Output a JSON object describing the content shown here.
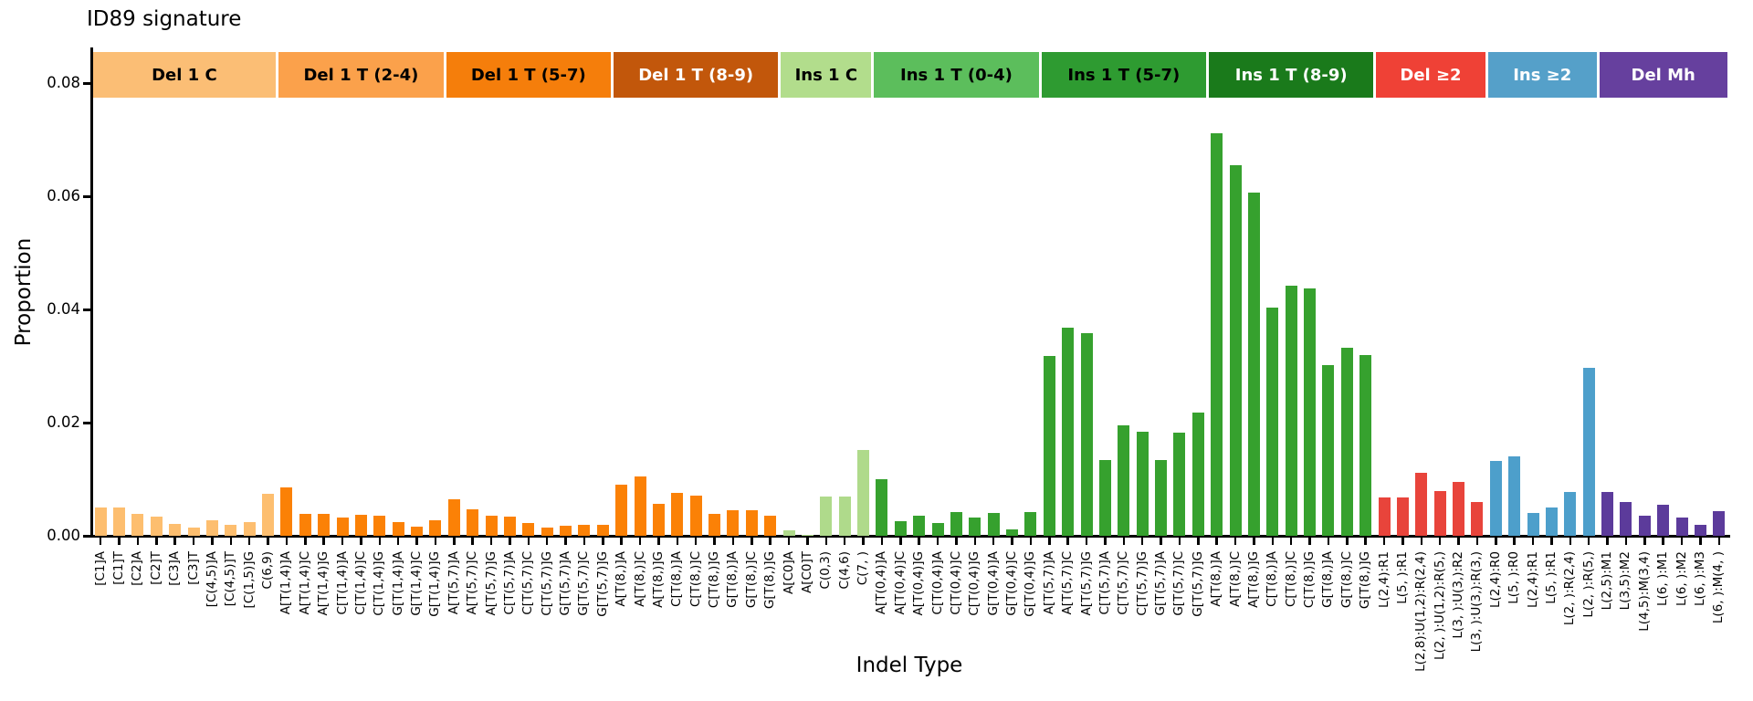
{
  "chart_data": {
    "type": "bar",
    "title": "ID89 signature",
    "xlabel": "Indel Type",
    "ylabel": "Proportion",
    "ylim": [
      0,
      0.0863
    ],
    "yticks": [
      0,
      0.02,
      0.04,
      0.06,
      0.08
    ],
    "grid": false,
    "legend": "none",
    "groups": [
      {
        "label": "Del 1 C",
        "band_color": "#FBBE75",
        "bar_color": "#FDBE6F",
        "label_color": "#000000",
        "categories": [
          "[C1]A",
          "[C1]T",
          "[C2]A",
          "[C2]T",
          "[C3]A",
          "[C3]T",
          "[C(4,5)]A",
          "[C(4,5)]T",
          "[C(1,5)]G",
          "C(6,9)"
        ],
        "values": [
          0.005,
          0.005,
          0.0038,
          0.0034,
          0.0021,
          0.0014,
          0.0028,
          0.0019,
          0.0024,
          0.0075
        ]
      },
      {
        "label": "Del 1 T (2-4)",
        "band_color": "#FBA14B",
        "bar_color": "#FB8106",
        "label_color": "#000000",
        "categories": [
          "A[T(1,4)]A",
          "A[T(1,4)]C",
          "A[T(1,4)]G",
          "C[T(1,4)]A",
          "C[T(1,4)]C",
          "C[T(1,4)]G",
          "G[T(1,4)]A",
          "G[T(1,4)]C",
          "G[T(1,4)]G"
        ],
        "values": [
          0.0086,
          0.0039,
          0.0039,
          0.0032,
          0.0037,
          0.0036,
          0.0024,
          0.0016,
          0.0027
        ]
      },
      {
        "label": "Del 1 T (5-7)",
        "band_color": "#F57E0B",
        "bar_color": "#FB8106",
        "label_color": "#000000",
        "categories": [
          "A[T(5,7)]A",
          "A[T(5,7)]C",
          "A[T(5,7)]G",
          "C[T(5,7)]A",
          "C[T(5,7)]C",
          "C[T(5,7)]G",
          "G[T(5,7)]A",
          "G[T(5,7)]C",
          "G[T(5,7)]G"
        ],
        "values": [
          0.0065,
          0.0047,
          0.0035,
          0.0034,
          0.0022,
          0.0015,
          0.0018,
          0.0019,
          0.0019
        ]
      },
      {
        "label": "Del 1 T (8-9)",
        "band_color": "#C2570B",
        "bar_color": "#FB8106",
        "label_color": "#ffffff",
        "categories": [
          "A[T(8,)]A",
          "A[T(8,)]C",
          "A[T(8,)]G",
          "C[T(8,)]A",
          "C[T(8,)]C",
          "C[T(8,)]G",
          "G[T(8,)]A",
          "G[T(8,)]C",
          "G[T(8,)]G"
        ],
        "values": [
          0.0091,
          0.0105,
          0.0056,
          0.0076,
          0.0071,
          0.0039,
          0.0045,
          0.0045,
          0.0035
        ]
      },
      {
        "label": "Ins 1 C",
        "band_color": "#B2DD8C",
        "bar_color": "#AFDA8B",
        "label_color": "#000000",
        "categories": [
          "A[C0]A",
          "A[C0]T",
          "C(0,3)",
          "C(4,6)",
          "C(7, )"
        ],
        "values": [
          0.001,
          0.0002,
          0.007,
          0.007,
          0.0152
        ]
      },
      {
        "label": "Ins 1 T (0-4)",
        "band_color": "#5CBE5C",
        "bar_color": "#36A12E",
        "label_color": "#000000",
        "categories": [
          "A[T(0,4)]A",
          "A[T(0,4)]C",
          "A[T(0,4)]G",
          "C[T(0,4)]A",
          "C[T(0,4)]C",
          "C[T(0,4)]G",
          "G[T(0,4)]A",
          "G[T(0,4)]C",
          "G[T(0,4)]G"
        ],
        "values": [
          0.01,
          0.0026,
          0.0036,
          0.0023,
          0.0042,
          0.0033,
          0.0041,
          0.0011,
          0.0042
        ]
      },
      {
        "label": "Ins 1 T (5-7)",
        "band_color": "#2E9B31",
        "bar_color": "#36A12E",
        "label_color": "#000000",
        "categories": [
          "A[T(5,7)]A",
          "A[T(5,7)]C",
          "A[T(5,7)]G",
          "C[T(5,7)]A",
          "C[T(5,7)]C",
          "C[T(5,7)]G",
          "G[T(5,7)]A",
          "G[T(5,7)]C",
          "G[T(5,7)]G"
        ],
        "values": [
          0.0317,
          0.0368,
          0.0358,
          0.0134,
          0.0195,
          0.0184,
          0.0134,
          0.0182,
          0.0218
        ]
      },
      {
        "label": "Ins 1 T (8-9)",
        "band_color": "#1A7A1B",
        "bar_color": "#36A12E",
        "label_color": "#ffffff",
        "categories": [
          "A[T(8,)]A",
          "A[T(8,)]C",
          "A[T(8,)]G",
          "C[T(8,)]A",
          "C[T(8,)]C",
          "C[T(8,)]G",
          "G[T(8,)]A",
          "G[T(8,)]C",
          "G[T(8,)]G"
        ],
        "values": [
          0.0712,
          0.0655,
          0.0606,
          0.0403,
          0.0442,
          0.0437,
          0.0302,
          0.0333,
          0.032
        ]
      },
      {
        "label": "Del ≥2",
        "band_color": "#EF4136",
        "bar_color": "#E8443B",
        "label_color": "#ffffff",
        "categories": [
          "L(2,4):R1",
          "L(5, ):R1",
          "L(2,8):U(1,2):R(2,4)",
          "L(2, ):U(1,2):R(5,)",
          "L(3, ):U(3,):R2",
          "L(3, ):U(3,):R(3,)"
        ],
        "values": [
          0.0067,
          0.0067,
          0.0112,
          0.0079,
          0.0095,
          0.006
        ]
      },
      {
        "label": "Ins ≥2",
        "band_color": "#55A0C9",
        "bar_color": "#4D9FCB",
        "label_color": "#ffffff",
        "categories": [
          "L(2,4):R0",
          "L(5, ):R0",
          "L(2,4):R1",
          "L(5, ):R1",
          "L(2, ):R(2,4)",
          "L(2, ):R(5,)"
        ],
        "values": [
          0.0132,
          0.014,
          0.0041,
          0.005,
          0.0077,
          0.0296
        ]
      },
      {
        "label": "Del Mh",
        "band_color": "#66409E",
        "bar_color": "#5C3B9B",
        "label_color": "#ffffff",
        "categories": [
          "L(2,5):M1",
          "L(3,5):M2",
          "L(4,5):M(3,4)",
          "L(6, ):M1",
          "L(6, ):M2",
          "L(6, ):M3",
          "L(6, ):M(4, )"
        ],
        "values": [
          0.0078,
          0.0059,
          0.0035,
          0.0055,
          0.0033,
          0.002,
          0.0044
        ]
      }
    ]
  }
}
